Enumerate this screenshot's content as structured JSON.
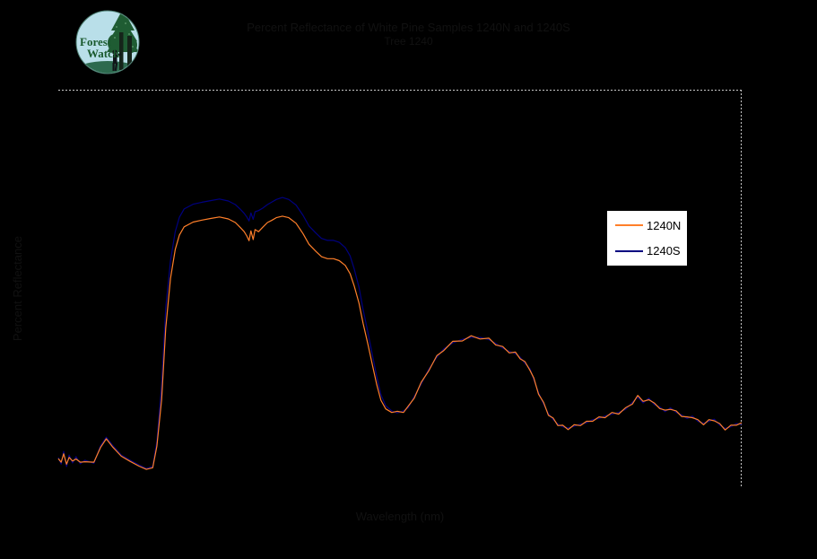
{
  "logo": {
    "text_line1": "Forest",
    "text_line2": "Watch"
  },
  "header": {
    "title_line1": "Percent Reflectance of White Pine Samples 1240N and 1240S",
    "title_line2": "Tree 1240"
  },
  "axes": {
    "y_label": "Percent Reflectance",
    "x_label": "Wavelength (nm)"
  },
  "colors": {
    "background": "#000000",
    "plot_border": "#c8c8c8",
    "legend_background": "#ffffff",
    "legend_border": "#000000",
    "series_1240N": "#ff7f2a",
    "series_1240S": "#000080"
  },
  "chart_data": {
    "type": "line",
    "title": "Percent Reflectance of White Pine Samples 1240N and 1240S",
    "subtitle": "Tree 1240",
    "xlabel": "Wavelength (nm)",
    "ylabel": "Percent Reflectance",
    "xlim": [
      350,
      2500
    ],
    "ylim": [
      0,
      100
    ],
    "grid": false,
    "legend_position": "right-center",
    "x": [
      350,
      359,
      367,
      376,
      384,
      395,
      406,
      419,
      434,
      462,
      483,
      501,
      520,
      548,
      576,
      604,
      627,
      647,
      660,
      675,
      688,
      703,
      718,
      731,
      746,
      774,
      802,
      829,
      857,
      885,
      907,
      922,
      935,
      943,
      950,
      956,
      963,
      969,
      980,
      993,
      1008,
      1021,
      1036,
      1055,
      1075,
      1098,
      1120,
      1139,
      1161,
      1178,
      1197,
      1216,
      1234,
      1253,
      1268,
      1281,
      1296,
      1309,
      1324,
      1339,
      1352,
      1365,
      1380,
      1399,
      1416,
      1436,
      1451,
      1470,
      1492,
      1515,
      1541,
      1563,
      1591,
      1621,
      1649,
      1677,
      1705,
      1726,
      1748,
      1769,
      1788,
      1803,
      1818,
      1834,
      1846,
      1861,
      1877,
      1892,
      1907,
      1922,
      1937,
      1954,
      1973,
      1993,
      2012,
      2031,
      2051,
      2070,
      2092,
      2113,
      2135,
      2156,
      2173,
      2190,
      2208,
      2225,
      2242,
      2259,
      2276,
      2294,
      2311,
      2328,
      2345,
      2362,
      2380,
      2397,
      2414,
      2431,
      2448,
      2466,
      2483,
      2500
    ],
    "series": [
      {
        "name": "1240N",
        "color": "#ff7f2a",
        "values": [
          7.2,
          6.3,
          8.4,
          5.8,
          7.5,
          6.6,
          7.1,
          6.3,
          6.4,
          6.3,
          10.0,
          12.2,
          10.2,
          7.8,
          6.5,
          5.3,
          4.5,
          4.9,
          10.3,
          22.0,
          40.0,
          52.5,
          59.8,
          63.4,
          65.5,
          66.7,
          67.2,
          67.6,
          68.0,
          67.5,
          66.6,
          65.4,
          64.3,
          63.2,
          62.0,
          64.5,
          62.3,
          64.8,
          64.3,
          65.4,
          66.6,
          67.1,
          67.8,
          68.2,
          67.8,
          66.4,
          63.8,
          61.1,
          59.3,
          58.0,
          57.5,
          57.5,
          57.0,
          55.8,
          53.7,
          50.6,
          46.3,
          41.2,
          36.0,
          30.5,
          25.8,
          21.9,
          19.7,
          18.8,
          19.1,
          18.8,
          20.4,
          22.4,
          26.4,
          29.2,
          33.1,
          34.4,
          36.7,
          36.8,
          38.1,
          37.3,
          37.5,
          35.8,
          35.4,
          33.8,
          34.0,
          32.3,
          31.6,
          29.4,
          27.5,
          23.4,
          21.3,
          18.1,
          17.4,
          15.5,
          15.6,
          14.5,
          15.7,
          15.5,
          16.6,
          16.6,
          17.7,
          17.5,
          18.8,
          18.4,
          20.0,
          20.9,
          23.1,
          21.6,
          22.0,
          21.2,
          19.8,
          19.4,
          19.6,
          19.2,
          17.8,
          17.7,
          17.5,
          17.0,
          15.7,
          17.0,
          16.7,
          16.0,
          14.4,
          15.6,
          15.6,
          16.2
        ]
      },
      {
        "name": "1240S",
        "color": "#000080",
        "values": [
          7.5,
          5.8,
          9.0,
          5.2,
          8.1,
          6.1,
          7.7,
          5.9,
          6.8,
          6.0,
          10.4,
          12.6,
          10.6,
          8.1,
          6.8,
          5.6,
          4.7,
          5.2,
          11.5,
          25.5,
          45.0,
          57.0,
          64.3,
          67.9,
          70.0,
          71.2,
          71.7,
          72.1,
          72.5,
          72.0,
          71.1,
          70.0,
          68.9,
          68.0,
          67.0,
          69.0,
          67.4,
          69.3,
          69.6,
          70.2,
          71.1,
          71.7,
          72.4,
          72.9,
          72.4,
          71.0,
          68.4,
          65.7,
          63.9,
          62.6,
          62.1,
          62.1,
          61.6,
          60.3,
          58.2,
          54.9,
          50.3,
          44.7,
          39.0,
          33.0,
          27.8,
          23.3,
          20.5,
          19.2,
          18.7,
          19.2,
          20.0,
          22.8,
          26.0,
          29.6,
          32.7,
          34.8,
          36.3,
          37.2,
          37.7,
          37.7,
          37.1,
          36.2,
          35.0,
          34.2,
          33.6,
          32.7,
          31.2,
          29.8,
          27.1,
          23.8,
          20.9,
          18.5,
          17.0,
          15.9,
          15.2,
          14.9,
          15.3,
          15.9,
          16.2,
          17.0,
          17.3,
          17.9,
          18.4,
          18.8,
          19.6,
          21.3,
          22.7,
          21.2,
          22.4,
          20.8,
          20.2,
          19.0,
          20.0,
          18.8,
          18.2,
          17.3,
          17.9,
          16.6,
          16.1,
          16.6,
          17.1,
          15.6,
          14.8,
          15.2,
          16.0,
          15.8
        ]
      }
    ]
  }
}
